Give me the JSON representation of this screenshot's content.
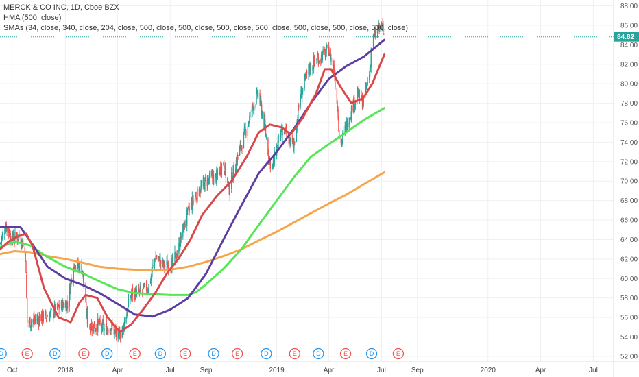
{
  "legend": {
    "title": "MERCK & CO INC, 1D, Cboe BZX",
    "hma": "HMA (500, close)",
    "smas": "SMAs (34, close, 340, close, 204, close, 500, close, 500, close, 500, close, 500, close, 500, close, 500, close, 500, close)"
  },
  "colors": {
    "background": "#ffffff",
    "grid": "#eef0f3",
    "up": "#26a69a",
    "down": "#ef5350",
    "hma": "#5b3fa0",
    "sma_fast": "#d94848",
    "sma_mid": "#55e655",
    "sma_slow": "#f5a64a",
    "last_price": "#26a69a",
    "dividend": "#2196f3",
    "earnings": "#ef5350"
  },
  "chart_data": {
    "type": "candlestick",
    "symbol": "MERCK & CO INC",
    "interval": "1D",
    "exchange": "Cboe BZX",
    "last_price": "84.82",
    "price_axis": {
      "range": [
        51.5,
        88.6
      ],
      "ticks": [
        "52.00",
        "54.00",
        "56.00",
        "58.00",
        "60.00",
        "62.00",
        "64.00",
        "66.00",
        "68.00",
        "70.00",
        "72.00",
        "74.00",
        "76.00",
        "78.00",
        "80.00",
        "82.00",
        "84.00",
        "86.00",
        "88.00"
      ]
    },
    "time_axis": {
      "range": [
        "2017-09-10",
        "2020-08-05"
      ],
      "ticks": [
        {
          "date": "2017-10-01",
          "label": "Oct"
        },
        {
          "date": "2018-01-01",
          "label": "2018"
        },
        {
          "date": "2018-04-01",
          "label": "Apr"
        },
        {
          "date": "2018-07-01",
          "label": "Jul"
        },
        {
          "date": "2018-09-01",
          "label": "Sep"
        },
        {
          "date": "2019-01-01",
          "label": "2019"
        },
        {
          "date": "2019-04-01",
          "label": "Apr"
        },
        {
          "date": "2019-07-01",
          "label": "Jul"
        },
        {
          "date": "2019-09-01",
          "label": "Sep"
        },
        {
          "date": "2020-01-01",
          "label": "2020"
        },
        {
          "date": "2020-04-01",
          "label": "Apr"
        },
        {
          "date": "2020-07-01",
          "label": "Jul"
        }
      ]
    },
    "price_path": [
      [
        "2017-09-10",
        63.5
      ],
      [
        "2017-09-20",
        65.5
      ],
      [
        "2017-10-02",
        64.0
      ],
      [
        "2017-10-15",
        64.5
      ],
      [
        "2017-10-24",
        62.5
      ],
      [
        "2017-10-27",
        55.5
      ],
      [
        "2017-11-10",
        55.8
      ],
      [
        "2017-11-20",
        56.0
      ],
      [
        "2017-12-05",
        56.3
      ],
      [
        "2017-12-20",
        57.0
      ],
      [
        "2018-01-05",
        57.5
      ],
      [
        "2018-01-15",
        61.5
      ],
      [
        "2018-01-30",
        61.0
      ],
      [
        "2018-02-05",
        57.0
      ],
      [
        "2018-02-10",
        55.0
      ],
      [
        "2018-02-25",
        55.3
      ],
      [
        "2018-03-10",
        54.8
      ],
      [
        "2018-03-20",
        55.2
      ],
      [
        "2018-04-01",
        54.0
      ],
      [
        "2018-04-10",
        54.8
      ],
      [
        "2018-04-25",
        58.5
      ],
      [
        "2018-05-10",
        58.5
      ],
      [
        "2018-05-25",
        59.2
      ],
      [
        "2018-06-05",
        62.3
      ],
      [
        "2018-06-20",
        61.3
      ],
      [
        "2018-07-05",
        61.5
      ],
      [
        "2018-07-15",
        63.0
      ],
      [
        "2018-07-25",
        65.5
      ],
      [
        "2018-08-05",
        67.5
      ],
      [
        "2018-08-20",
        69.0
      ],
      [
        "2018-09-01",
        70.0
      ],
      [
        "2018-09-20",
        70.5
      ],
      [
        "2018-10-01",
        72.0
      ],
      [
        "2018-10-10",
        69.0
      ],
      [
        "2018-10-20",
        71.5
      ],
      [
        "2018-11-05",
        74.5
      ],
      [
        "2018-11-20",
        77.5
      ],
      [
        "2018-11-30",
        79.0
      ],
      [
        "2018-12-10",
        76.0
      ],
      [
        "2018-12-20",
        72.0
      ],
      [
        "2018-12-25",
        71.5
      ],
      [
        "2019-01-05",
        74.5
      ],
      [
        "2019-01-15",
        75.0
      ],
      [
        "2019-01-30",
        73.5
      ],
      [
        "2019-02-10",
        78.5
      ],
      [
        "2019-02-25",
        81.5
      ],
      [
        "2019-03-10",
        82.5
      ],
      [
        "2019-03-25",
        83.0
      ],
      [
        "2019-04-01",
        83.5
      ],
      [
        "2019-04-10",
        81.5
      ],
      [
        "2019-04-17",
        77.0
      ],
      [
        "2019-04-20",
        73.5
      ],
      [
        "2019-05-05",
        76.5
      ],
      [
        "2019-05-20",
        79.0
      ],
      [
        "2019-05-30",
        78.0
      ],
      [
        "2019-06-10",
        81.0
      ],
      [
        "2019-06-15",
        84.5
      ],
      [
        "2019-06-25",
        85.5
      ],
      [
        "2019-07-01",
        86.0
      ],
      [
        "2019-07-06",
        84.82
      ]
    ],
    "series": [
      {
        "name": "HMA (500, close)",
        "key": "hma",
        "points": [
          [
            "2017-09-10",
            65.3
          ],
          [
            "2017-10-15",
            65.3
          ],
          [
            "2017-11-05",
            63.5
          ],
          [
            "2017-12-01",
            61.2
          ],
          [
            "2018-01-01",
            60.0
          ],
          [
            "2018-02-01",
            59.3
          ],
          [
            "2018-03-01",
            58.5
          ],
          [
            "2018-04-01",
            57.4
          ],
          [
            "2018-05-01",
            56.3
          ],
          [
            "2018-06-01",
            56.1
          ],
          [
            "2018-07-01",
            56.8
          ],
          [
            "2018-08-01",
            58.0
          ],
          [
            "2018-09-01",
            60.5
          ],
          [
            "2018-10-01",
            64.0
          ],
          [
            "2018-11-01",
            67.5
          ],
          [
            "2018-12-01",
            70.8
          ],
          [
            "2019-01-01",
            73.0
          ],
          [
            "2019-02-01",
            75.5
          ],
          [
            "2019-03-01",
            78.0
          ],
          [
            "2019-04-01",
            80.5
          ],
          [
            "2019-05-01",
            81.8
          ],
          [
            "2019-06-01",
            82.8
          ],
          [
            "2019-07-06",
            84.5
          ]
        ]
      },
      {
        "name": "SMA 34",
        "key": "sma_fast",
        "points": [
          [
            "2017-09-10",
            63.0
          ],
          [
            "2017-09-25",
            63.8
          ],
          [
            "2017-10-10",
            64.3
          ],
          [
            "2017-10-25",
            64.6
          ],
          [
            "2017-11-05",
            63.4
          ],
          [
            "2017-11-25",
            59.0
          ],
          [
            "2017-12-20",
            56.0
          ],
          [
            "2018-01-10",
            55.5
          ],
          [
            "2018-01-25",
            57.5
          ],
          [
            "2018-02-05",
            58.3
          ],
          [
            "2018-02-25",
            58.0
          ],
          [
            "2018-03-15",
            56.0
          ],
          [
            "2018-04-05",
            54.5
          ],
          [
            "2018-04-25",
            55.3
          ],
          [
            "2018-05-15",
            56.8
          ],
          [
            "2018-06-05",
            58.5
          ],
          [
            "2018-06-25",
            60.5
          ],
          [
            "2018-07-15",
            62.0
          ],
          [
            "2018-08-05",
            64.0
          ],
          [
            "2018-08-25",
            66.5
          ],
          [
            "2018-09-20",
            68.5
          ],
          [
            "2018-10-15",
            70.0
          ],
          [
            "2018-11-10",
            72.5
          ],
          [
            "2018-12-01",
            75.0
          ],
          [
            "2018-12-20",
            75.8
          ],
          [
            "2019-01-10",
            75.5
          ],
          [
            "2019-01-25",
            74.8
          ],
          [
            "2019-02-15",
            76.5
          ],
          [
            "2019-03-10",
            79.0
          ],
          [
            "2019-03-25",
            81.5
          ],
          [
            "2019-04-05",
            81.5
          ],
          [
            "2019-04-20",
            79.8
          ],
          [
            "2019-05-10",
            78.0
          ],
          [
            "2019-05-30",
            78.5
          ],
          [
            "2019-06-15",
            80.0
          ],
          [
            "2019-07-06",
            83.0
          ]
        ]
      },
      {
        "name": "SMA 340",
        "key": "sma_mid",
        "points": [
          [
            "2017-09-10",
            63.2
          ],
          [
            "2017-10-05",
            63.8
          ],
          [
            "2017-11-01",
            63.4
          ],
          [
            "2017-12-01",
            62.2
          ],
          [
            "2018-01-01",
            61.2
          ],
          [
            "2018-02-01",
            60.5
          ],
          [
            "2018-03-01",
            59.7
          ],
          [
            "2018-04-01",
            58.9
          ],
          [
            "2018-05-01",
            58.5
          ],
          [
            "2018-06-01",
            58.4
          ],
          [
            "2018-07-01",
            58.3
          ],
          [
            "2018-08-01",
            58.3
          ],
          [
            "2018-08-15",
            58.6
          ],
          [
            "2018-09-01",
            59.4
          ],
          [
            "2018-10-01",
            61.0
          ],
          [
            "2018-11-01",
            63.0
          ],
          [
            "2018-12-01",
            65.5
          ],
          [
            "2019-01-01",
            68.0
          ],
          [
            "2019-02-01",
            70.5
          ],
          [
            "2019-03-01",
            72.5
          ],
          [
            "2019-04-01",
            73.8
          ],
          [
            "2019-05-01",
            75.0
          ],
          [
            "2019-06-01",
            76.3
          ],
          [
            "2019-07-06",
            77.5
          ]
        ]
      },
      {
        "name": "SMA 204",
        "key": "sma_slow",
        "points": [
          [
            "2017-09-10",
            62.5
          ],
          [
            "2017-10-05",
            62.8
          ],
          [
            "2017-11-01",
            62.7
          ],
          [
            "2017-12-01",
            62.3
          ],
          [
            "2018-01-01",
            62.0
          ],
          [
            "2018-02-01",
            61.6
          ],
          [
            "2018-03-01",
            61.2
          ],
          [
            "2018-04-01",
            61.0
          ],
          [
            "2018-05-01",
            60.9
          ],
          [
            "2018-06-01",
            60.9
          ],
          [
            "2018-07-01",
            60.9
          ],
          [
            "2018-08-01",
            61.2
          ],
          [
            "2018-09-01",
            61.7
          ],
          [
            "2018-10-01",
            62.3
          ],
          [
            "2018-11-01",
            63.0
          ],
          [
            "2018-12-01",
            63.9
          ],
          [
            "2019-01-01",
            64.8
          ],
          [
            "2019-02-01",
            65.8
          ],
          [
            "2019-03-01",
            66.7
          ],
          [
            "2019-04-01",
            67.7
          ],
          [
            "2019-05-01",
            68.6
          ],
          [
            "2019-06-01",
            69.7
          ],
          [
            "2019-07-06",
            70.9
          ]
        ]
      }
    ],
    "events": [
      {
        "date": "2017-09-12",
        "label": "D",
        "type": "dividend"
      },
      {
        "date": "2017-10-27",
        "label": "E",
        "type": "earnings"
      },
      {
        "date": "2017-12-14",
        "label": "D",
        "type": "dividend"
      },
      {
        "date": "2018-02-02",
        "label": "E",
        "type": "earnings"
      },
      {
        "date": "2018-03-14",
        "label": "D",
        "type": "dividend"
      },
      {
        "date": "2018-05-01",
        "label": "E",
        "type": "earnings"
      },
      {
        "date": "2018-06-14",
        "label": "D",
        "type": "dividend"
      },
      {
        "date": "2018-07-27",
        "label": "E",
        "type": "earnings"
      },
      {
        "date": "2018-09-14",
        "label": "D",
        "type": "dividend"
      },
      {
        "date": "2018-10-25",
        "label": "E",
        "type": "earnings"
      },
      {
        "date": "2018-12-14",
        "label": "D",
        "type": "dividend"
      },
      {
        "date": "2019-02-01",
        "label": "E",
        "type": "earnings"
      },
      {
        "date": "2019-03-14",
        "label": "D",
        "type": "dividend"
      },
      {
        "date": "2019-04-30",
        "label": "E",
        "type": "earnings"
      },
      {
        "date": "2019-06-14",
        "label": "D",
        "type": "dividend"
      },
      {
        "date": "2019-07-30",
        "label": "E",
        "type": "earnings"
      }
    ]
  }
}
